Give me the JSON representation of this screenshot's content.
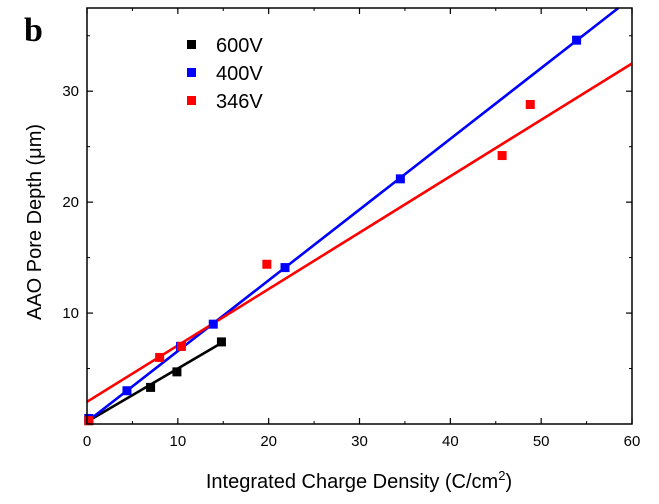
{
  "chart_data": {
    "type": "scatter",
    "panel_label": "b",
    "xlabel": "Integrated Charge Density (C/cm",
    "xlabel_sup": "2",
    "xlabel_end": ")",
    "ylabel": "AAO Pore Depth (μm)",
    "xlim": [
      0,
      60
    ],
    "ylim": [
      0,
      37.5
    ],
    "xticks": [
      0,
      10,
      20,
      30,
      40,
      50,
      60
    ],
    "yticks": [
      10,
      20,
      30
    ],
    "legend_position": "top-left",
    "series": [
      {
        "name": "600V",
        "color": "#000000",
        "points": [
          [
            0.2,
            0.3
          ],
          [
            7.0,
            3.3
          ],
          [
            9.9,
            4.7
          ],
          [
            14.8,
            7.4
          ]
        ],
        "fit_line": [
          [
            0,
            0.2
          ],
          [
            14.8,
            7.3
          ]
        ]
      },
      {
        "name": "400V",
        "color": "#0000ff",
        "points": [
          [
            0.2,
            0.5
          ],
          [
            4.4,
            3.0
          ],
          [
            10.3,
            7.0
          ],
          [
            13.9,
            9.0
          ],
          [
            21.8,
            14.1
          ],
          [
            34.5,
            22.1
          ],
          [
            53.9,
            34.6
          ]
        ],
        "fit_line": [
          [
            0,
            0.2
          ],
          [
            58.5,
            37.5
          ]
        ]
      },
      {
        "name": "346V",
        "color": "#ff0000",
        "points": [
          [
            0.2,
            0.3
          ],
          [
            8.0,
            6.0
          ],
          [
            10.4,
            7.0
          ],
          [
            19.8,
            14.4
          ],
          [
            45.7,
            24.2
          ],
          [
            48.8,
            28.8
          ]
        ],
        "fit_line": [
          [
            0,
            2.0
          ],
          [
            60,
            32.5
          ]
        ]
      }
    ]
  }
}
